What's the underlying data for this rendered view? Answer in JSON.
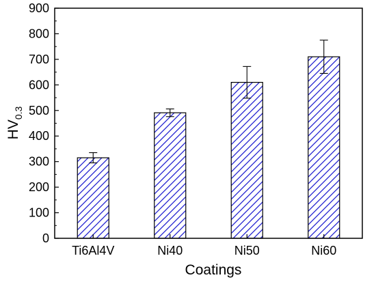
{
  "chart_data": {
    "type": "bar",
    "categories": [
      "Ti6Al4V",
      "Ni40",
      "Ni50",
      "Ni60"
    ],
    "values": [
      315,
      491,
      610,
      710
    ],
    "errors": [
      20,
      15,
      62,
      65
    ],
    "xlabel": "Coatings",
    "ylabel_main": "HV",
    "ylabel_sub": "0.3",
    "ylim": [
      0,
      900
    ],
    "yticks": [
      0,
      100,
      200,
      300,
      400,
      500,
      600,
      700,
      800,
      900
    ],
    "bar_fill": "hatched",
    "hatch_color": "#1f1fd0",
    "bar_edge_color": "#000000",
    "grid": false,
    "legend": "none"
  }
}
